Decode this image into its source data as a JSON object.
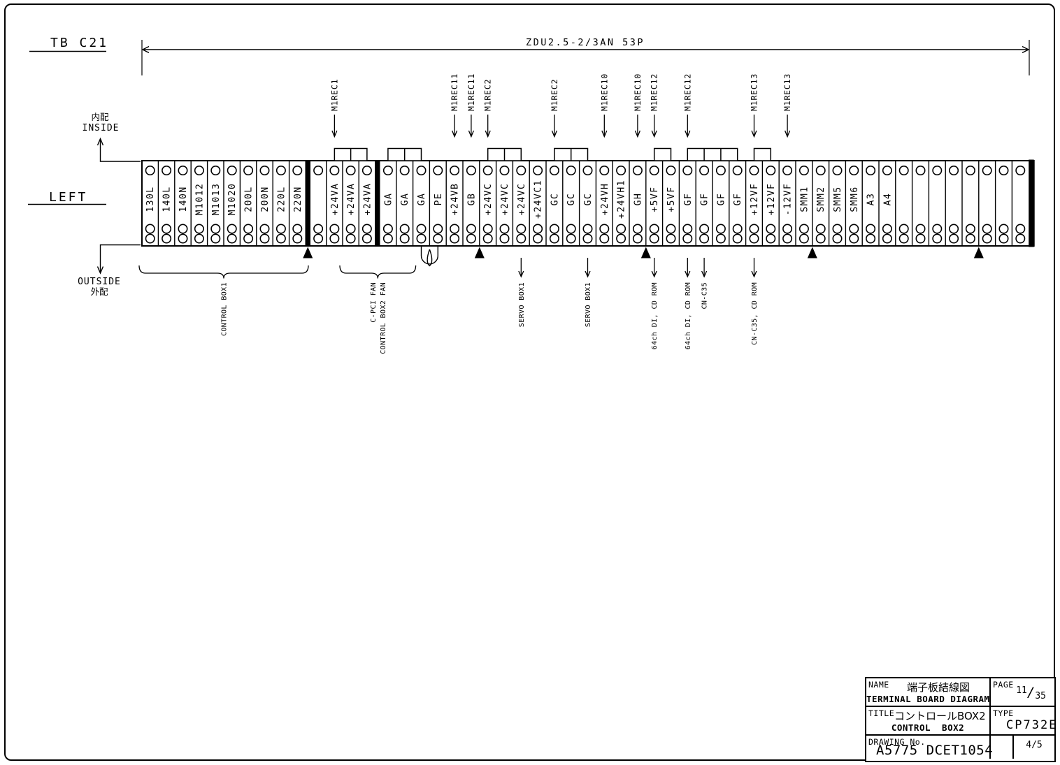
{
  "colors": {
    "ink": "#000000",
    "paper": "#ffffff"
  },
  "header": {
    "board_id": "TB C21"
  },
  "dimension": {
    "label": "ZDU2.5-2/3AN 53P"
  },
  "side": {
    "left_label": "LEFT",
    "inside_jp": "内配",
    "inside_en": "INSIDE",
    "outside_en": "OUTSIDE",
    "outside_jp": "外配"
  },
  "strip": {
    "terminals": [
      "130L",
      "140L",
      "140N",
      "M1012",
      "M1013",
      "M1020",
      "200L",
      "200N",
      "220L",
      "220N",
      "",
      "+24VA",
      "+24VA",
      "+24VA",
      "GA",
      "GA",
      "GA",
      "PE",
      "+24VB",
      "GB",
      "+24VC",
      "+24VC",
      "+24VC",
      "+24VC1",
      "GC",
      "GC",
      "GC",
      "+24VH",
      "+24VH1",
      "GH",
      "+5VF",
      "+5VF",
      "GF",
      "GF",
      "GF",
      "GF",
      "+12VF",
      "+12VF",
      "-12VF",
      "SMM1",
      "SMM2",
      "SMM5",
      "SMM6",
      "A3",
      "A4",
      "",
      "",
      "",
      "",
      "",
      "",
      "",
      ""
    ],
    "separators_before": [
      10,
      14
    ],
    "jumpers": [
      {
        "from": 11,
        "to": 13
      },
      {
        "from": 14,
        "to": 16
      },
      {
        "from": 20,
        "to": 22
      },
      {
        "from": 24,
        "to": 26
      },
      {
        "from": 30,
        "to": 31
      },
      {
        "from": 32,
        "to": 35
      },
      {
        "from": 36,
        "to": 37
      }
    ],
    "top_arrows": [
      {
        "label": "M1REC1",
        "terminal": 11
      },
      {
        "label": "M1REC11",
        "terminal": 18
      },
      {
        "label": "M1REC11",
        "terminal": 19
      },
      {
        "label": "M1REC2",
        "terminal": 20
      },
      {
        "label": "M1REC2",
        "terminal": 24
      },
      {
        "label": "M1REC10",
        "terminal": 27
      },
      {
        "label": "M1REC10",
        "terminal": 29
      },
      {
        "label": "M1REC12",
        "terminal": 30
      },
      {
        "label": "M1REC12",
        "terminal": 32
      },
      {
        "label": "M1REC13",
        "terminal": 36
      },
      {
        "label": "M1REC13",
        "terminal": 38
      }
    ],
    "bottom_arrows": [
      {
        "label": "SERVO BOX1",
        "terminal": 22
      },
      {
        "label": "SERVO BOX1",
        "terminal": 26
      },
      {
        "label": "64ch DI, CD ROM",
        "terminal": 30
      },
      {
        "label": "64ch DI, CD ROM",
        "terminal": 32
      },
      {
        "label": "CN-C35",
        "terminal": 33
      },
      {
        "label": "CN-C35, CD ROM",
        "terminal": 36
      }
    ],
    "triangles_before": [
      10,
      20,
      30,
      40,
      50
    ],
    "braces": [
      {
        "from": 0,
        "to": 9,
        "labels": [
          "CONTROL BOX1"
        ]
      },
      {
        "from": 12,
        "to": 15,
        "labels": [
          "C-PCI FAN",
          "CONTROL BOX2 FAN"
        ]
      }
    ],
    "pe_loop": {
      "from": 16,
      "to": 17
    }
  },
  "title_block": {
    "name_label": "NAME",
    "name_jp": "端子板結線図",
    "name_en": "TERMINAL BOARD DIAGRAM",
    "page_label": "PAGE",
    "page_num": "11",
    "page_total": "35",
    "title_label": "TITLE",
    "title_jp": "コントロールBOX2",
    "title_en": "CONTROL  BOX2",
    "type_label": "TYPE",
    "type_value": "CP732E",
    "drawing_label": "DRAWING No.",
    "drawing_number": "A5775 DCET1054",
    "sheet_num": "4",
    "sheet_total": "5"
  }
}
